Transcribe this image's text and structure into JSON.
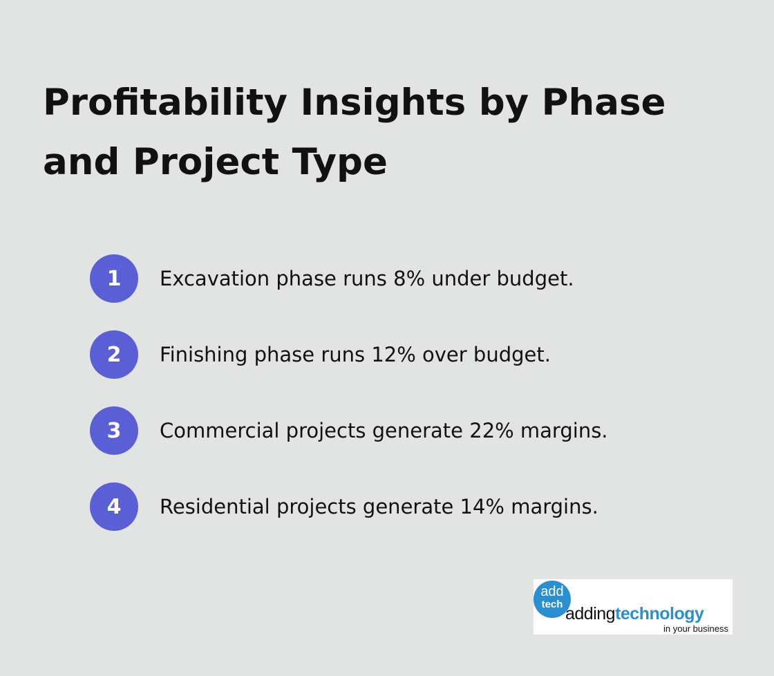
{
  "header": {
    "title": "Profitability Insights by Phase and Project Type"
  },
  "items": [
    {
      "number": 1,
      "text": "Excavation phase runs 8% under budget."
    },
    {
      "number": 2,
      "text": "Finishing phase runs 12% over budget."
    },
    {
      "number": 3,
      "text": "Commercial projects generate 22% margins."
    },
    {
      "number": 4,
      "text": "Residential projects generate 14% margins."
    }
  ],
  "logo": {
    "badge_top": "add",
    "badge_bottom": "tech",
    "name_light": "adding",
    "name_bold": "technology",
    "tagline": "in your business"
  }
}
